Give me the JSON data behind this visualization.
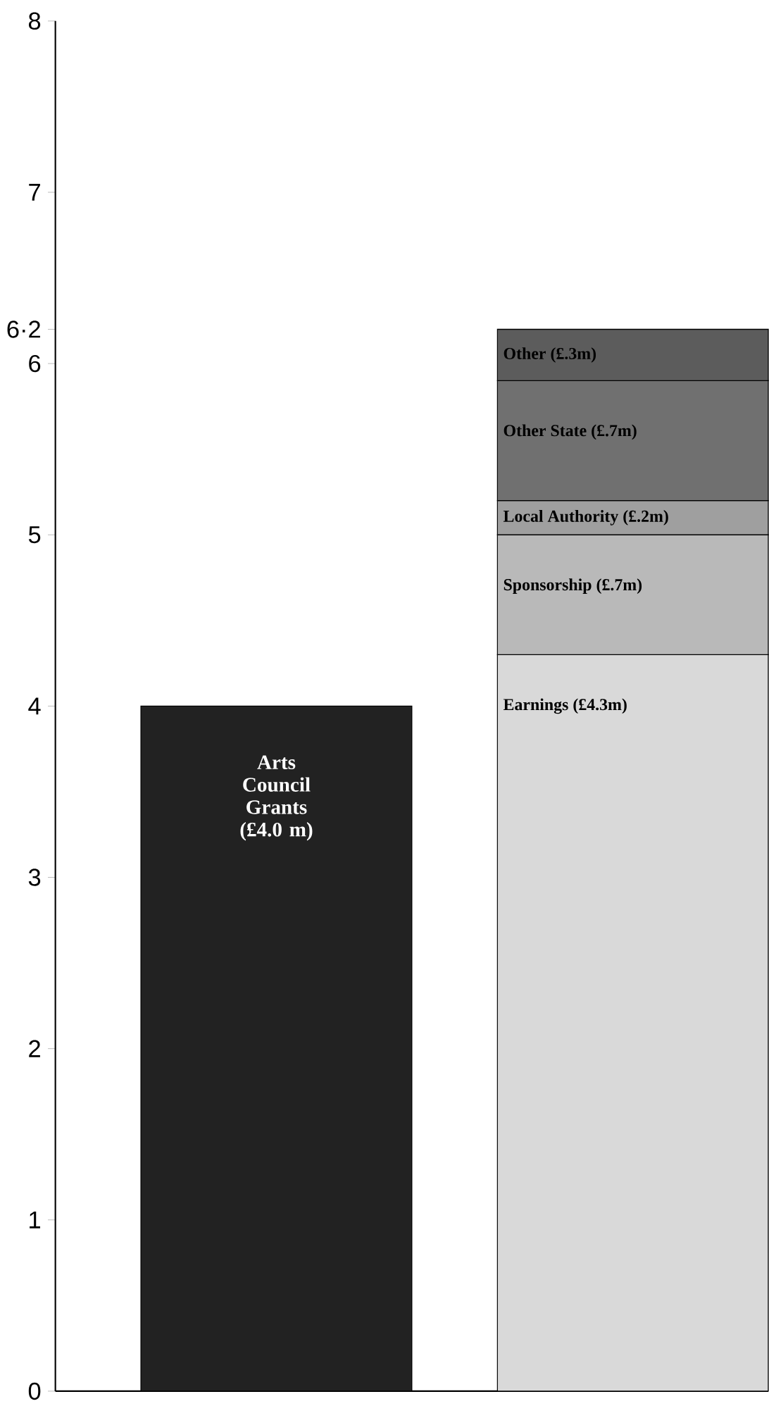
{
  "chart_data": {
    "type": "bar",
    "stacked": true,
    "categories": [
      null,
      null
    ],
    "series": [
      {
        "name": "Arts Council Grants (£4.0 m)",
        "color": "#222222",
        "values": [
          4.0,
          null
        ]
      },
      {
        "name": "Earnings (£4.3m)",
        "color": "#d9d9d9",
        "values": [
          null,
          4.3
        ]
      },
      {
        "name": "Sponsorship (£.7m)",
        "color": "#b9b9b9",
        "values": [
          null,
          0.7
        ]
      },
      {
        "name": "Local Authority (£.2m)",
        "color": "#9f9f9f",
        "values": [
          null,
          0.2
        ]
      },
      {
        "name": "Other State (£.7m)",
        "color": "#707070",
        "values": [
          null,
          0.7
        ]
      },
      {
        "name": "Other (£.3m)",
        "color": "#5c5c5c",
        "values": [
          null,
          0.3
        ]
      }
    ],
    "ylim": [
      0,
      8
    ],
    "yticks": [
      0,
      1,
      2,
      3,
      4,
      5,
      6,
      {
        "value": 6.2,
        "label": "6·2"
      },
      7,
      8
    ]
  }
}
